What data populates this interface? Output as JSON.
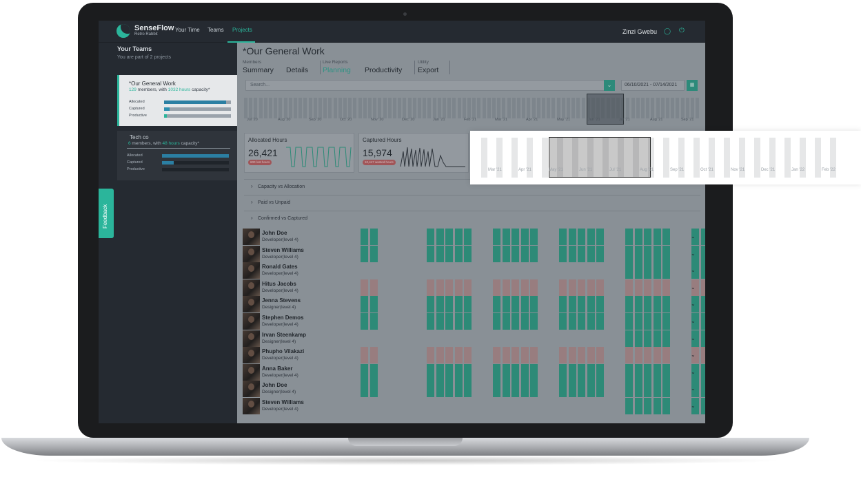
{
  "nav": {
    "brand": "SenseFlow",
    "brand_sub": "Retro Rabbit",
    "links": [
      "Your Time",
      "Teams",
      "Projects"
    ],
    "active": "Projects",
    "user_name": "Zinzi Gwebu",
    "user_icon": "user-icon",
    "power_icon": "power-icon"
  },
  "sidebar": {
    "title": "Your Teams",
    "subtitle": "You are part of 2 projects",
    "teams": [
      {
        "name": "*Our General Work",
        "members": "129",
        "hours": "1032 hours",
        "selected": true,
        "bars": [
          {
            "label": "Allocated",
            "level": 0.93
          },
          {
            "label": "Captured",
            "level": 0.08
          },
          {
            "label": "Productive",
            "level": 0.04
          }
        ]
      },
      {
        "name": "Tech co",
        "members": "6",
        "hours": "48 hours",
        "selected": false,
        "bars": [
          {
            "label": "Allocated",
            "level": 1.0
          },
          {
            "label": "Captured",
            "level": 0.18
          },
          {
            "label": "Productive",
            "level": 0.0
          }
        ]
      }
    ],
    "members_text": " members, with ",
    "capacity_text": " capacity*",
    "feedback": "Feedback"
  },
  "main": {
    "title": "*Our General Work",
    "tab_groups": [
      {
        "label": "Members",
        "tabs": [
          "Summary",
          "Details"
        ]
      },
      {
        "label": "Live Reports",
        "tabs": [
          "Planning",
          "Productivity"
        ]
      },
      {
        "label": "Utility",
        "tabs": [
          "Export"
        ]
      }
    ],
    "active_tab": "Planning",
    "search_placeholder": "Search...",
    "date_range": "06/10/2021 - 07/14/2021",
    "timeline_labels": [
      "Jul '20",
      "Aug '20",
      "Sep '20",
      "Oct '20",
      "Nov '20",
      "Dec '20",
      "Jan '21",
      "Feb '21",
      "Mar '21",
      "Apr '21",
      "May '21",
      "Jun '21",
      "Jul '21",
      "Aug '21",
      "Sep '21"
    ],
    "stats": [
      {
        "title": "Allocated Hours",
        "value": "26,421",
        "badge": "600 lost hours"
      },
      {
        "title": "Captured Hours",
        "value": "15,974",
        "badge": "10,447 wasted hours"
      }
    ],
    "accordions": [
      "Capacity vs Allocation",
      "Paid vs Unpaid",
      "Confirmed vs Captured"
    ],
    "members": [
      {
        "name": "John Doe",
        "role": "Developer(level 4)",
        "status": "g"
      },
      {
        "name": "Steven Williams",
        "role": "Developer(level 4)",
        "status": "g"
      },
      {
        "name": "Ronald Gates",
        "role": "Developer(level 4)",
        "status": "partial"
      },
      {
        "name": "Hitus Jacobs",
        "role": "Developer(level 4)",
        "status": "r"
      },
      {
        "name": "Jenna Stevens",
        "role": "Designer(level 4)",
        "status": "g"
      },
      {
        "name": "Stephen Demos",
        "role": "Developer(level 4)",
        "status": "g"
      },
      {
        "name": "Irvan Steenkamp",
        "role": "Designer(level 4)",
        "status": "partial"
      },
      {
        "name": "Phupho Vilakazi",
        "role": "Developer(level 4)",
        "status": "r"
      },
      {
        "name": "Anna Baker",
        "role": "Developer(level 4)",
        "status": "g"
      },
      {
        "name": "John Doe",
        "role": "Designer(level 4)",
        "status": "g"
      },
      {
        "name": "Steven Williams",
        "role": "Developer(level 4)",
        "status": "partial"
      }
    ]
  },
  "popout": {
    "labels": [
      "Mar '21",
      "Apr '21",
      "May '21",
      "Jun '21",
      "Jul '21",
      "Aug '21",
      "Sep '21",
      "Oct '21",
      "Nov '21",
      "Dec '21",
      "Jan '22",
      "Feb '22"
    ]
  },
  "colors": {
    "accent": "#2bb59b",
    "allocated": "#2a9a82",
    "over": "#ad8a8c",
    "lost": "#b8595c"
  }
}
